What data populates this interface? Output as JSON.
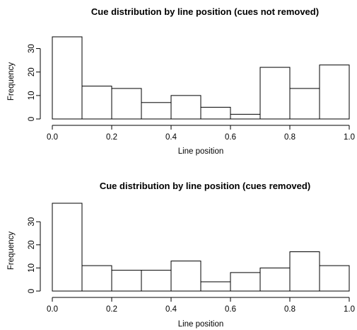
{
  "chart_data": [
    {
      "type": "bar",
      "title": "Cue distribution by line position (cues not removed)",
      "xlabel": "Line position",
      "ylabel": "Frequency",
      "bins": [
        [
          0.0,
          0.1
        ],
        [
          0.1,
          0.2
        ],
        [
          0.2,
          0.3
        ],
        [
          0.3,
          0.4
        ],
        [
          0.4,
          0.5
        ],
        [
          0.5,
          0.6
        ],
        [
          0.6,
          0.7
        ],
        [
          0.7,
          0.8
        ],
        [
          0.8,
          0.9
        ],
        [
          0.9,
          1.0
        ]
      ],
      "values": [
        35,
        14,
        13,
        7,
        10,
        5,
        2,
        22,
        13,
        23
      ],
      "xlim": [
        0,
        1
      ],
      "ylim": [
        0,
        35
      ],
      "xticks": [
        "0.0",
        "0.2",
        "0.4",
        "0.6",
        "0.8",
        "1.0"
      ],
      "yticks": [
        "0",
        "10",
        "20",
        "30"
      ],
      "grid": false
    },
    {
      "type": "bar",
      "title": "Cue distribution by line position (cues removed)",
      "xlabel": "Line position",
      "ylabel": "Frequency",
      "bins": [
        [
          0.0,
          0.1
        ],
        [
          0.1,
          0.2
        ],
        [
          0.2,
          0.3
        ],
        [
          0.3,
          0.4
        ],
        [
          0.4,
          0.5
        ],
        [
          0.5,
          0.6
        ],
        [
          0.6,
          0.7
        ],
        [
          0.7,
          0.8
        ],
        [
          0.8,
          0.9
        ],
        [
          0.9,
          1.0
        ]
      ],
      "values": [
        38,
        11,
        9,
        9,
        13,
        4,
        8,
        10,
        17,
        11
      ],
      "xlim": [
        0,
        1
      ],
      "ylim": [
        0,
        38
      ],
      "xticks": [
        "0.0",
        "0.2",
        "0.4",
        "0.6",
        "0.8",
        "1.0"
      ],
      "yticks": [
        "0",
        "10",
        "20",
        "30"
      ],
      "grid": false
    }
  ]
}
